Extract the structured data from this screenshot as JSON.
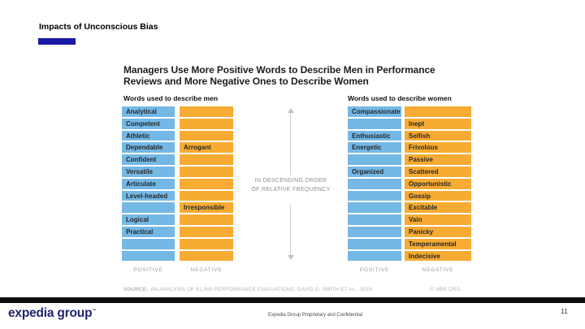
{
  "slide": {
    "title": "Impacts of Unconscious Bias",
    "page_number": "11",
    "footer_note": "Expedia Group Proprietary and Confidential",
    "logo_text": "expedia group",
    "logo_tm": "™",
    "accent_color": "#1A1AA6",
    "logo_color": "#22246D",
    "divider_color": "#0E0E10"
  },
  "chart_data": {
    "type": "table",
    "title": "Managers Use More Positive Words to Describe Men in Performance Reviews and More Negative Ones to Describe Women",
    "title_line1": "Managers Use More Positive Words to Describe Men in Performance",
    "title_line2": "Reviews and More Negative Ones to Describe Women",
    "annotation_line1": "IN DESCENDING ORDER",
    "annotation_line2": "OF RELATIVE FREQUENCY",
    "source_label": "SOURCE:",
    "source_text": "AN ANALYSIS OF 81,000 PERFORMANCE EVALUATIONS, DAVID G. SMITH ET AL., 2018",
    "credit": "© HBR.ORG",
    "colors": {
      "positive": "#74B8E6",
      "negative": "#F7AB32"
    },
    "columns": {
      "positive_label": "POSITIVE",
      "negative_label": "NEGATIVE"
    },
    "men": {
      "header": "Words used to describe men",
      "rows": [
        {
          "positive": "Analytical",
          "negative": ""
        },
        {
          "positive": "Competent",
          "negative": ""
        },
        {
          "positive": "Athletic",
          "negative": ""
        },
        {
          "positive": "Dependable",
          "negative": "Arrogant"
        },
        {
          "positive": "Confident",
          "negative": ""
        },
        {
          "positive": "Versatile",
          "negative": ""
        },
        {
          "positive": "Articulate",
          "negative": ""
        },
        {
          "positive": "Level-headed",
          "negative": ""
        },
        {
          "positive": "",
          "negative": "Irresponsible"
        },
        {
          "positive": "Logical",
          "negative": ""
        },
        {
          "positive": "Practical",
          "negative": ""
        },
        {
          "positive": "",
          "negative": ""
        },
        {
          "positive": "",
          "negative": ""
        }
      ]
    },
    "women": {
      "header": "Words used to describe women",
      "rows": [
        {
          "positive": "Compassionate",
          "negative": ""
        },
        {
          "positive": "",
          "negative": "Inept"
        },
        {
          "positive": "Enthusiastic",
          "negative": "Selfish"
        },
        {
          "positive": "Energetic",
          "negative": "Frivolous"
        },
        {
          "positive": "",
          "negative": "Passive"
        },
        {
          "positive": "Organized",
          "negative": "Scattered"
        },
        {
          "positive": "",
          "negative": "Opportunistic"
        },
        {
          "positive": "",
          "negative": "Gossip"
        },
        {
          "positive": "",
          "negative": "Excitable"
        },
        {
          "positive": "",
          "negative": "Vain"
        },
        {
          "positive": "",
          "negative": "Panicky"
        },
        {
          "positive": "",
          "negative": "Temperamental"
        },
        {
          "positive": "",
          "negative": "Indecisive"
        }
      ]
    }
  }
}
